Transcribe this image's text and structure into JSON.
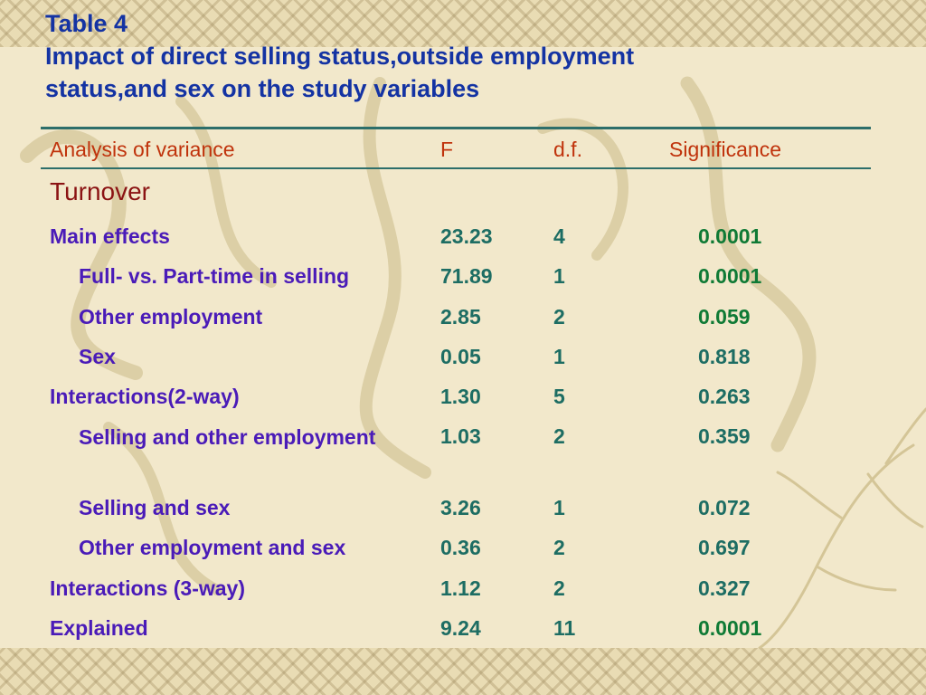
{
  "title": {
    "line1": "Table 4",
    "line2": "Impact of direct selling status,outside employment",
    "line3": "status,and sex on the study variables"
  },
  "table": {
    "headers": {
      "analysis": "Analysis of variance",
      "f": "F",
      "df": "d.f.",
      "significance": "Significance"
    },
    "section": "Turnover",
    "rows": [
      {
        "label": "Main effects",
        "f": "23.23",
        "df": "4",
        "sig": "0.0001"
      },
      {
        "label": "Full- vs. Part-time in selling",
        "f": "71.89",
        "df": "1",
        "sig": "0.0001"
      },
      {
        "label": "Other employment",
        "f": "2.85",
        "df": "2",
        "sig": "0.059"
      },
      {
        "label": "Sex",
        "f": "0.05",
        "df": "1",
        "sig": "0.818"
      },
      {
        "label": "Interactions(2-way)",
        "f": "1.30",
        "df": "5",
        "sig": "0.263"
      },
      {
        "label": "Selling and other employment",
        "f": "1.03",
        "df": "2",
        "sig": "0.359"
      },
      {
        "label": "Selling and sex",
        "f": "3.26",
        "df": "1",
        "sig": "0.072"
      },
      {
        "label": "Other employment and sex",
        "f": "0.36",
        "df": "2",
        "sig": "0.697"
      },
      {
        "label": "Interactions (3-way)",
        "f": "1.12",
        "df": "2",
        "sig": "0.327"
      },
      {
        "label": "Explained",
        "f": "9.24",
        "df": "11",
        "sig": "0.0001"
      }
    ]
  }
}
